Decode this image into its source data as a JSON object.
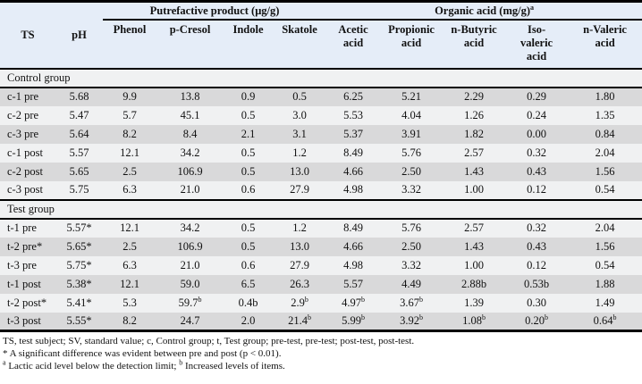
{
  "table": {
    "col_groups": [
      {
        "label": "Putrefactive product (μg/g)",
        "span": 4
      },
      {
        "label": "Organic acid (mg/g)^a",
        "span": 5
      }
    ],
    "columns": [
      "TS",
      "pH",
      "Phenol",
      "p-Cresol",
      "Indole",
      "Skatole",
      "Acetic\nacid",
      "Propionic\nacid",
      "n-Butyric\nacid",
      "Iso-\nvaleric\nacid",
      "n-Valeric\nacid"
    ],
    "sections": [
      {
        "title": "Control group",
        "rows": [
          [
            "c-1 pre",
            "5.68",
            "9.9",
            "13.8",
            "0.9",
            "0.5",
            "6.25",
            "5.21",
            "2.29",
            "0.29",
            "1.80"
          ],
          [
            "c-2 pre",
            "5.47",
            "5.7",
            "45.1",
            "0.5",
            "3.0",
            "5.53",
            "4.04",
            "1.26",
            "0.24",
            "1.35"
          ],
          [
            "c-3 pre",
            "5.64",
            "8.2",
            "8.4",
            "2.1",
            "3.1",
            "5.37",
            "3.91",
            "1.82",
            "0.00",
            "0.84"
          ],
          [
            "c-1 post",
            "5.57",
            "12.1",
            "34.2",
            "0.5",
            "1.2",
            "8.49",
            "5.76",
            "2.57",
            "0.32",
            "2.04"
          ],
          [
            "c-2 post",
            "5.65",
            "2.5",
            "106.9",
            "0.5",
            "13.0",
            "4.66",
            "2.50",
            "1.43",
            "0.43",
            "1.56"
          ],
          [
            "c-3 post",
            "5.75",
            "6.3",
            "21.0",
            "0.6",
            "27.9",
            "4.98",
            "3.32",
            "1.00",
            "0.12",
            "0.54"
          ]
        ]
      },
      {
        "title": "Test group",
        "rows": [
          [
            "t-1 pre",
            "5.57*",
            "12.1",
            "34.2",
            "0.5",
            "1.2",
            "8.49",
            "5.76",
            "2.57",
            "0.32",
            "2.04"
          ],
          [
            "t-2 pre*",
            "5.65*",
            "2.5",
            "106.9",
            "0.5",
            "13.0",
            "4.66",
            "2.50",
            "1.43",
            "0.43",
            "1.56"
          ],
          [
            "t-3 pre",
            "5.75*",
            "6.3",
            "21.0",
            "0.6",
            "27.9",
            "4.98",
            "3.32",
            "1.00",
            "0.12",
            "0.54"
          ],
          [
            "t-1 post",
            "5.38*",
            "12.1",
            "59.0",
            "6.5",
            "26.3",
            "5.57",
            "4.49",
            "2.88b",
            "0.53b",
            "1.88"
          ],
          [
            "t-2 post*",
            "5.41*",
            "5.3",
            "59.7^b",
            "0.4b",
            "2.9^b",
            "4.97^b",
            "3.67^b",
            "1.39",
            "0.30",
            "1.49"
          ],
          [
            "t-3 post",
            "5.55*",
            "8.2",
            "24.7",
            "2.0",
            "21.4^b",
            "5.99^b",
            "3.92^b",
            "1.08^b",
            "0.20^b",
            "0.64^b"
          ]
        ]
      }
    ]
  },
  "footnotes": [
    "TS, test subject; SV, standard value; c, Control group; t, Test group; pre-test, pre-test; post-test, post-test.",
    "* A significant difference was evident between pre and post (p < 0.01).",
    "^a Lactic acid level below the detection limit; ^b Increased levels of items."
  ],
  "colors": {
    "header_bg": "#e5edf8",
    "row_shaded": "#d9d9da",
    "row_light": "#f0f1f2",
    "rule": "#000000"
  }
}
